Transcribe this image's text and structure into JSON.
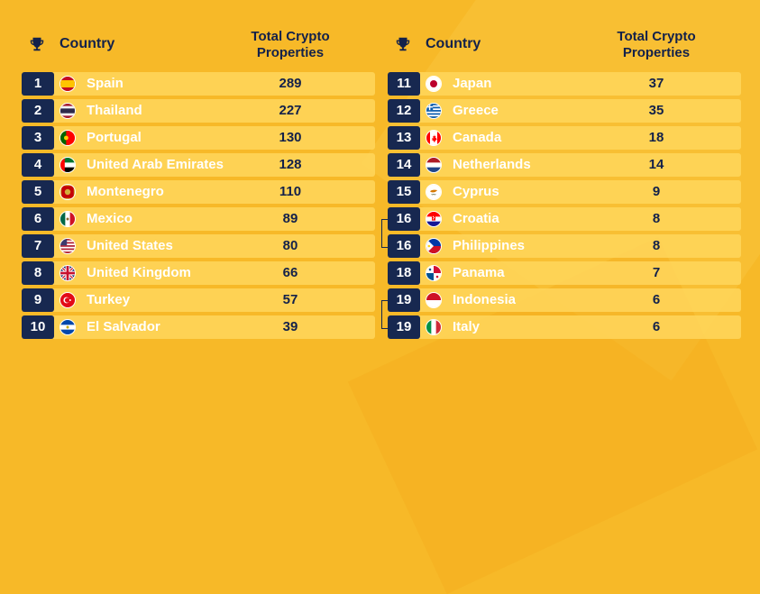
{
  "header": {
    "country_label": "Country",
    "total_label_line1": "Total Crypto",
    "total_label_line2": "Properties",
    "icon": "trophy-icon"
  },
  "colors": {
    "background": "#f7b928",
    "rank_badge": "#172850",
    "row": "#ffd65c",
    "heading_text": "#13214a",
    "country_text": "#ffffff"
  },
  "chart_data": {
    "type": "table",
    "columns": [
      "Rank",
      "Country",
      "Total Crypto Properties"
    ],
    "rows": [
      {
        "rank": "1",
        "country": "Spain",
        "value": "289",
        "flag": "spain-flag-icon"
      },
      {
        "rank": "2",
        "country": "Thailand",
        "value": "227",
        "flag": "thailand-flag-icon"
      },
      {
        "rank": "3",
        "country": "Portugal",
        "value": "130",
        "flag": "portugal-flag-icon"
      },
      {
        "rank": "4",
        "country": "United Arab Emirates",
        "value": "128",
        "flag": "uae-flag-icon"
      },
      {
        "rank": "5",
        "country": "Montenegro",
        "value": "110",
        "flag": "montenegro-flag-icon"
      },
      {
        "rank": "6",
        "country": "Mexico",
        "value": "89",
        "flag": "mexico-flag-icon"
      },
      {
        "rank": "7",
        "country": "United States",
        "value": "80",
        "flag": "usa-flag-icon"
      },
      {
        "rank": "8",
        "country": "United Kingdom",
        "value": "66",
        "flag": "uk-flag-icon"
      },
      {
        "rank": "9",
        "country": "Turkey",
        "value": "57",
        "flag": "turkey-flag-icon"
      },
      {
        "rank": "10",
        "country": "El Salvador",
        "value": "39",
        "flag": "el-salvador-flag-icon"
      },
      {
        "rank": "11",
        "country": "Japan",
        "value": "37",
        "flag": "japan-flag-icon"
      },
      {
        "rank": "12",
        "country": "Greece",
        "value": "35",
        "flag": "greece-flag-icon"
      },
      {
        "rank": "13",
        "country": "Canada",
        "value": "18",
        "flag": "canada-flag-icon"
      },
      {
        "rank": "14",
        "country": "Netherlands",
        "value": "14",
        "flag": "netherlands-flag-icon"
      },
      {
        "rank": "15",
        "country": "Cyprus",
        "value": "9",
        "flag": "cyprus-flag-icon"
      },
      {
        "rank": "16",
        "country": "Croatia",
        "value": "8",
        "flag": "croatia-flag-icon"
      },
      {
        "rank": "16",
        "country": "Philippines",
        "value": "8",
        "flag": "philippines-flag-icon"
      },
      {
        "rank": "18",
        "country": "Panama",
        "value": "7",
        "flag": "panama-flag-icon"
      },
      {
        "rank": "19",
        "country": "Indonesia",
        "value": "6",
        "flag": "indonesia-flag-icon"
      },
      {
        "rank": "19",
        "country": "Italy",
        "value": "6",
        "flag": "italy-flag-icon"
      }
    ],
    "ties": [
      [
        "16",
        "16"
      ],
      [
        "19",
        "19"
      ]
    ]
  }
}
